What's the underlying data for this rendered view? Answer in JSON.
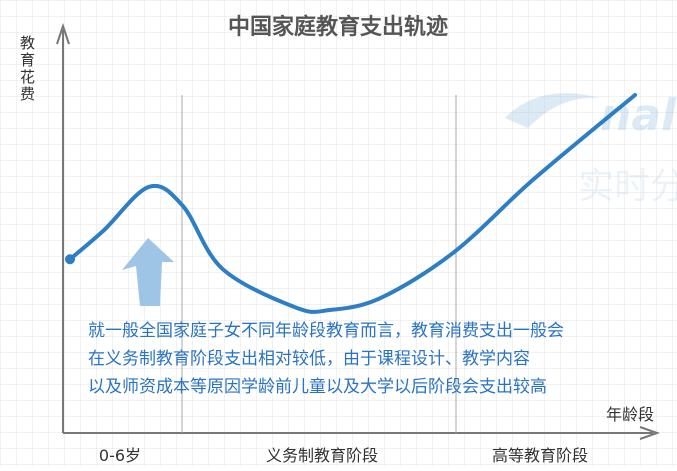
{
  "chart_data": {
    "type": "line",
    "title": "中国家庭教育支出轨迹",
    "ylabel": "教育花费",
    "xlabel": "年龄段",
    "categories": [
      "0-6岁",
      "义务制教育阶段",
      "高等教育阶段"
    ],
    "curve": [
      {
        "x": 0.0,
        "y": 0.32
      },
      {
        "x": 0.06,
        "y": 0.44
      },
      {
        "x": 0.14,
        "y": 0.62
      },
      {
        "x": 0.2,
        "y": 0.54
      },
      {
        "x": 0.27,
        "y": 0.28
      },
      {
        "x": 0.4,
        "y": 0.12
      },
      {
        "x": 0.46,
        "y": 0.11
      },
      {
        "x": 0.55,
        "y": 0.16
      },
      {
        "x": 0.68,
        "y": 0.35
      },
      {
        "x": 0.82,
        "y": 0.65
      },
      {
        "x": 1.0,
        "y": 1.0
      }
    ],
    "annotation": "就一般全国家庭子女不同年龄段教育而言，教育消费支出一般会在义务制教育阶段支出相对较低，由于课程设计、教学内容以及师资成本等原因学龄前儿童以及大学以后阶段会支出较高",
    "grid": true,
    "colors": {
      "line": "#2e7ec6",
      "arrow": "#9ec4e6",
      "annotation": "#2a73c4",
      "axis": "#777777",
      "grid": "#e3e3e3",
      "divider": "#a8a8a8"
    }
  },
  "watermark": {
    "brand": "nal",
    "sub": "实时分"
  }
}
